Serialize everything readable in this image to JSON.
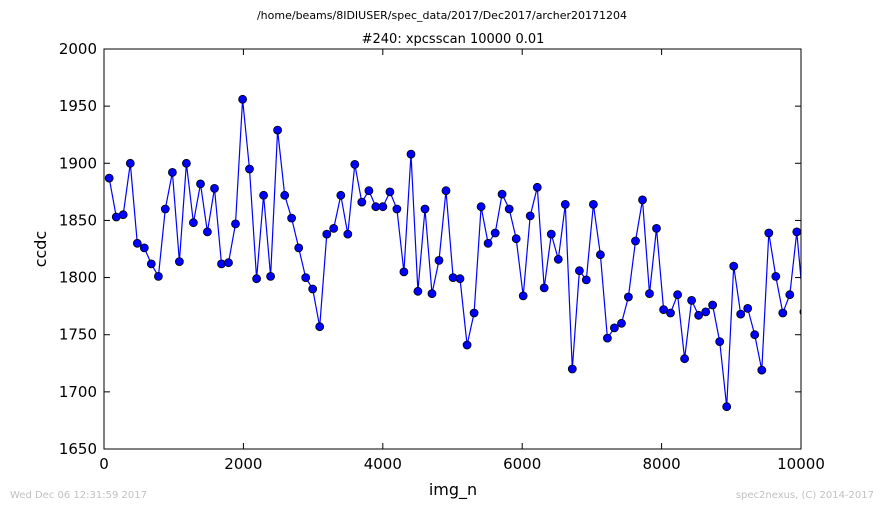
{
  "suptitle": "/home/beams/8IDIUSER/spec_data/2017/Dec2017/archer20171204",
  "footer": {
    "timestamp": "Wed Dec 06 12:31:59 2017",
    "credit": "spec2nexus, (C) 2014-2017"
  },
  "colors": {
    "line": "#0000ff",
    "marker_fill": "#0000ff",
    "marker_edge": "#000000",
    "axes": "#000000"
  },
  "chart_data": {
    "type": "line",
    "title": "#240: xpcsscan 10000 0.01",
    "xlabel": "img_n",
    "ylabel": "ccdc",
    "xlim": [
      0,
      10000
    ],
    "ylim": [
      1650,
      2000
    ],
    "xticks": [
      0,
      2000,
      4000,
      6000,
      8000,
      10000
    ],
    "yticks": [
      1650,
      1700,
      1750,
      1800,
      1850,
      1900,
      1950,
      2000
    ],
    "grid": false,
    "legend": "none",
    "series": [
      {
        "marker": "circle",
        "x": [
          75,
          176,
          276,
          377,
          478,
          578,
          679,
          780,
          880,
          981,
          1082,
          1182,
          1283,
          1384,
          1484,
          1585,
          1686,
          1786,
          1887,
          1988,
          2088,
          2189,
          2290,
          2390,
          2491,
          2592,
          2692,
          2793,
          2894,
          2994,
          3095,
          3196,
          3296,
          3397,
          3498,
          3598,
          3699,
          3800,
          3900,
          4001,
          4102,
          4202,
          4303,
          4404,
          4504,
          4605,
          4706,
          4806,
          4907,
          5008,
          5108,
          5209,
          5310,
          5410,
          5511,
          5612,
          5712,
          5813,
          5914,
          6014,
          6115,
          6216,
          6316,
          6417,
          6518,
          6618,
          6719,
          6820,
          6920,
          7021,
          7122,
          7222,
          7323,
          7424,
          7524,
          7625,
          7726,
          7826,
          7927,
          8028,
          8128,
          8229,
          8330,
          8430,
          8531,
          8632,
          8732,
          8833,
          8934,
          9034,
          9135,
          9236,
          9336,
          9437,
          9538,
          9638,
          9739,
          9840,
          9940,
          10041
        ],
        "y": [
          1887,
          1853,
          1855,
          1900,
          1830,
          1826,
          1812,
          1801,
          1860,
          1892,
          1814,
          1900,
          1848,
          1882,
          1840,
          1878,
          1812,
          1813,
          1847,
          1956,
          1895,
          1799,
          1872,
          1801,
          1929,
          1872,
          1852,
          1826,
          1800,
          1790,
          1757,
          1838,
          1843,
          1872,
          1838,
          1899,
          1866,
          1876,
          1862,
          1862,
          1875,
          1860,
          1805,
          1908,
          1788,
          1860,
          1786,
          1815,
          1876,
          1800,
          1799,
          1741,
          1769,
          1862,
          1830,
          1839,
          1873,
          1860,
          1834,
          1784,
          1854,
          1879,
          1791,
          1838,
          1816,
          1864,
          1720,
          1806,
          1798,
          1864,
          1820,
          1747,
          1756,
          1760,
          1783,
          1832,
          1868,
          1786,
          1843,
          1772,
          1769,
          1785,
          1729,
          1780,
          1767,
          1770,
          1776,
          1744,
          1687,
          1810,
          1768,
          1773,
          1750,
          1719,
          1839,
          1801,
          1769,
          1785,
          1840,
          1770
        ]
      }
    ]
  }
}
